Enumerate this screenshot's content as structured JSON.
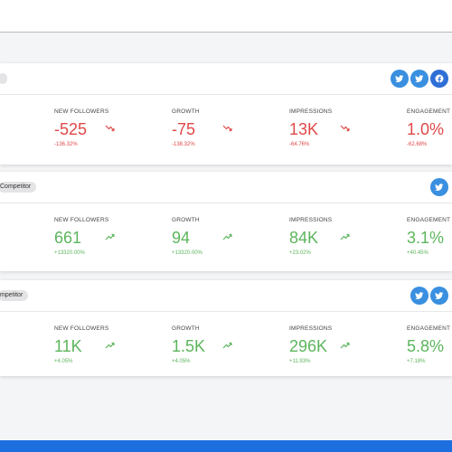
{
  "cards": [
    {
      "metrics": [
        {
          "label": "NEW FOLLOWERS",
          "value": "-525",
          "change": "-136.32%"
        },
        {
          "label": "GROWTH",
          "value": "-75",
          "change": "-138.32%"
        },
        {
          "label": "IMPRESSIONS",
          "value": "13K",
          "change": "-64.76%"
        },
        {
          "label": "ENGAGEMENT R",
          "value": "1.0%",
          "change": "-62.68%"
        }
      ]
    },
    {
      "tag": "Competitor",
      "metrics": [
        {
          "label": "NEW FOLLOWERS",
          "value": "661",
          "change": "+13320.00%"
        },
        {
          "label": "GROWTH",
          "value": "94",
          "change": "+13320.00%"
        },
        {
          "label": "IMPRESSIONS",
          "value": "84K",
          "change": "+23.02%"
        },
        {
          "label": "ENGAGEMENT R",
          "value": "3.1%",
          "change": "+40.45%"
        }
      ]
    },
    {
      "tag": "mpetitor",
      "metrics": [
        {
          "label": "NEW FOLLOWERS",
          "value": "11K",
          "change": "+4.05%"
        },
        {
          "label": "GROWTH",
          "value": "1.5K",
          "change": "+4.05%"
        },
        {
          "label": "IMPRESSIONS",
          "value": "296K",
          "change": "+11.93%"
        },
        {
          "label": "ENGAGEMENT R",
          "value": "5.8%",
          "change": "+7.18%"
        }
      ]
    }
  ]
}
